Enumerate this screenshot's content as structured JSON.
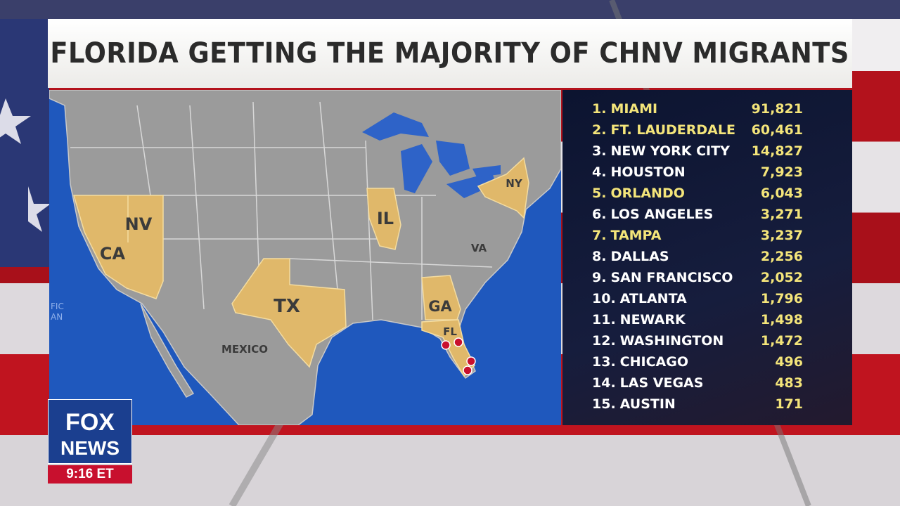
{
  "header": {
    "title": "FLORIDA GETTING THE MAJORITY OF CHNV MIGRANTS"
  },
  "map": {
    "labels": [
      "NV",
      "CA",
      "TX",
      "IL",
      "GA",
      "FL",
      "NY",
      "VA",
      "MEXICO",
      "FIC",
      "AN"
    ]
  },
  "list": {
    "rows": [
      {
        "rank": "1.",
        "name": "MIAMI",
        "value": "91,821",
        "color": "#f4e57a"
      },
      {
        "rank": "2.",
        "name": "FT. LAUDERDALE",
        "value": "60,461",
        "color": "#f4e57a"
      },
      {
        "rank": "3.",
        "name": "NEW YORK CITY",
        "value": "14,827",
        "color": "#ffffff"
      },
      {
        "rank": "4.",
        "name": "HOUSTON",
        "value": "7,923",
        "color": "#ffffff"
      },
      {
        "rank": "5.",
        "name": "ORLANDO",
        "value": "6,043",
        "color": "#f4e57a"
      },
      {
        "rank": "6.",
        "name": "LOS ANGELES",
        "value": "3,271",
        "color": "#ffffff"
      },
      {
        "rank": "7.",
        "name": "TAMPA",
        "value": "3,237",
        "color": "#f4e57a"
      },
      {
        "rank": "8.",
        "name": "DALLAS",
        "value": "2,256",
        "color": "#ffffff"
      },
      {
        "rank": "9.",
        "name": "SAN FRANCISCO",
        "value": "2,052",
        "color": "#ffffff"
      },
      {
        "rank": "10.",
        "name": "ATLANTA",
        "value": "1,796",
        "color": "#ffffff"
      },
      {
        "rank": "11.",
        "name": "NEWARK",
        "value": "1,498",
        "color": "#ffffff"
      },
      {
        "rank": "12.",
        "name": "WASHINGTON",
        "value": "1,472",
        "color": "#ffffff"
      },
      {
        "rank": "13.",
        "name": "CHICAGO",
        "value": "496",
        "color": "#ffffff"
      },
      {
        "rank": "14.",
        "name": "LAS VEGAS",
        "value": "483",
        "color": "#ffffff"
      },
      {
        "rank": "15.",
        "name": "AUSTIN",
        "value": "171",
        "color": "#ffffff"
      }
    ]
  },
  "logo": {
    "brand": "FOX",
    "sub": "NEWS",
    "time": "9:16 ET"
  }
}
